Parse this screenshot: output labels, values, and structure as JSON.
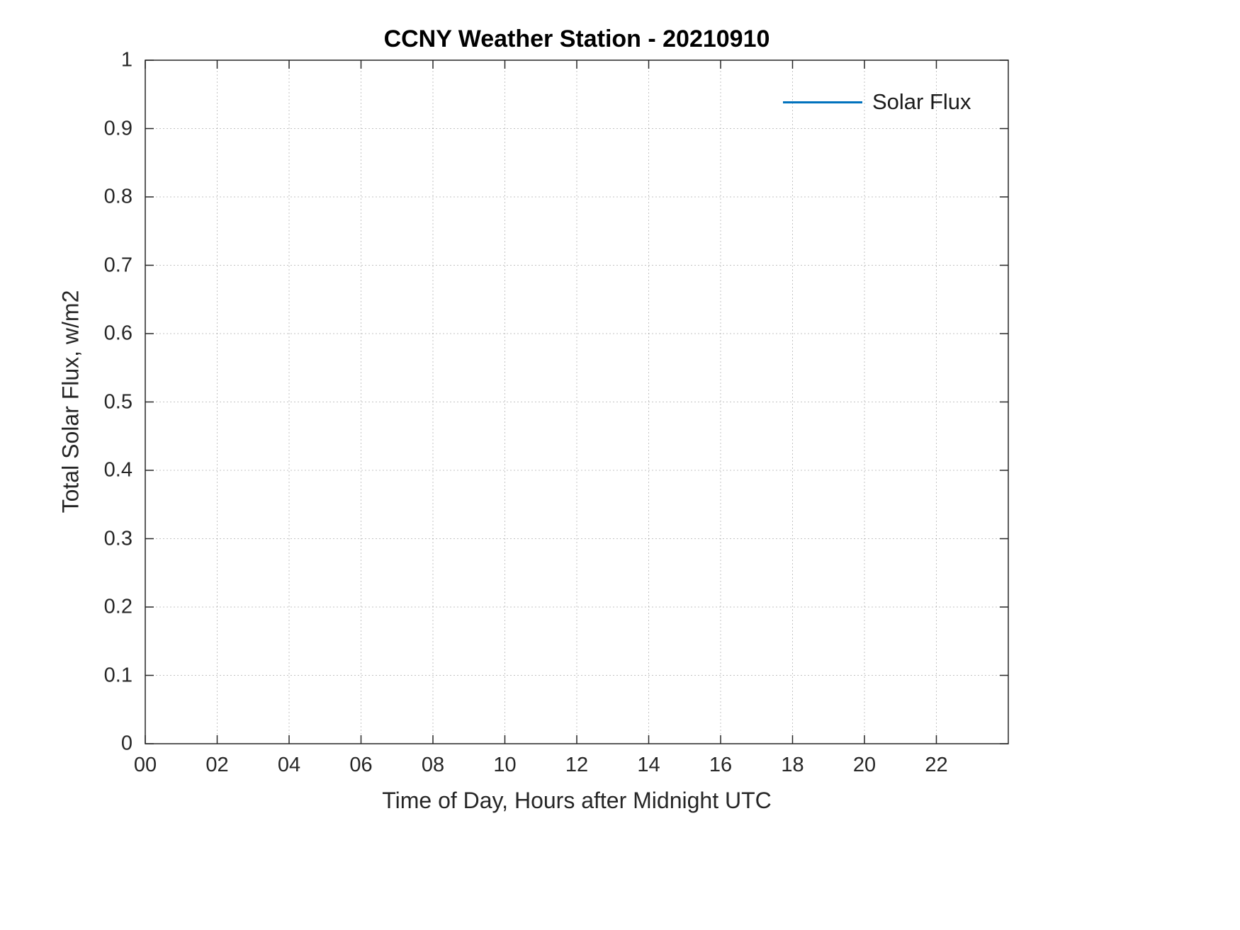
{
  "chart_data": {
    "type": "line",
    "title": "CCNY Weather Station - 20210910",
    "xlabel": "Time of Day, Hours after Midnight UTC",
    "ylabel": "Total Solar Flux, w/m2",
    "xlim": [
      0,
      24
    ],
    "ylim": [
      0,
      1
    ],
    "x_ticks": [
      0,
      2,
      4,
      6,
      8,
      10,
      12,
      14,
      16,
      18,
      20,
      22
    ],
    "x_tick_labels": [
      "00",
      "02",
      "04",
      "06",
      "08",
      "10",
      "12",
      "14",
      "16",
      "18",
      "20",
      "22"
    ],
    "y_ticks": [
      0,
      0.1,
      0.2,
      0.3,
      0.4,
      0.5,
      0.6,
      0.7,
      0.8,
      0.9,
      1
    ],
    "y_tick_labels": [
      "0",
      "0.1",
      "0.2",
      "0.3",
      "0.4",
      "0.5",
      "0.6",
      "0.7",
      "0.8",
      "0.9",
      "1"
    ],
    "grid": true,
    "legend": {
      "position": "northeast",
      "entries": [
        {
          "label": "Solar Flux",
          "color": "#0072BD"
        }
      ]
    },
    "series": [
      {
        "name": "Solar Flux",
        "color": "#0072BD",
        "x": [],
        "y": []
      }
    ]
  }
}
